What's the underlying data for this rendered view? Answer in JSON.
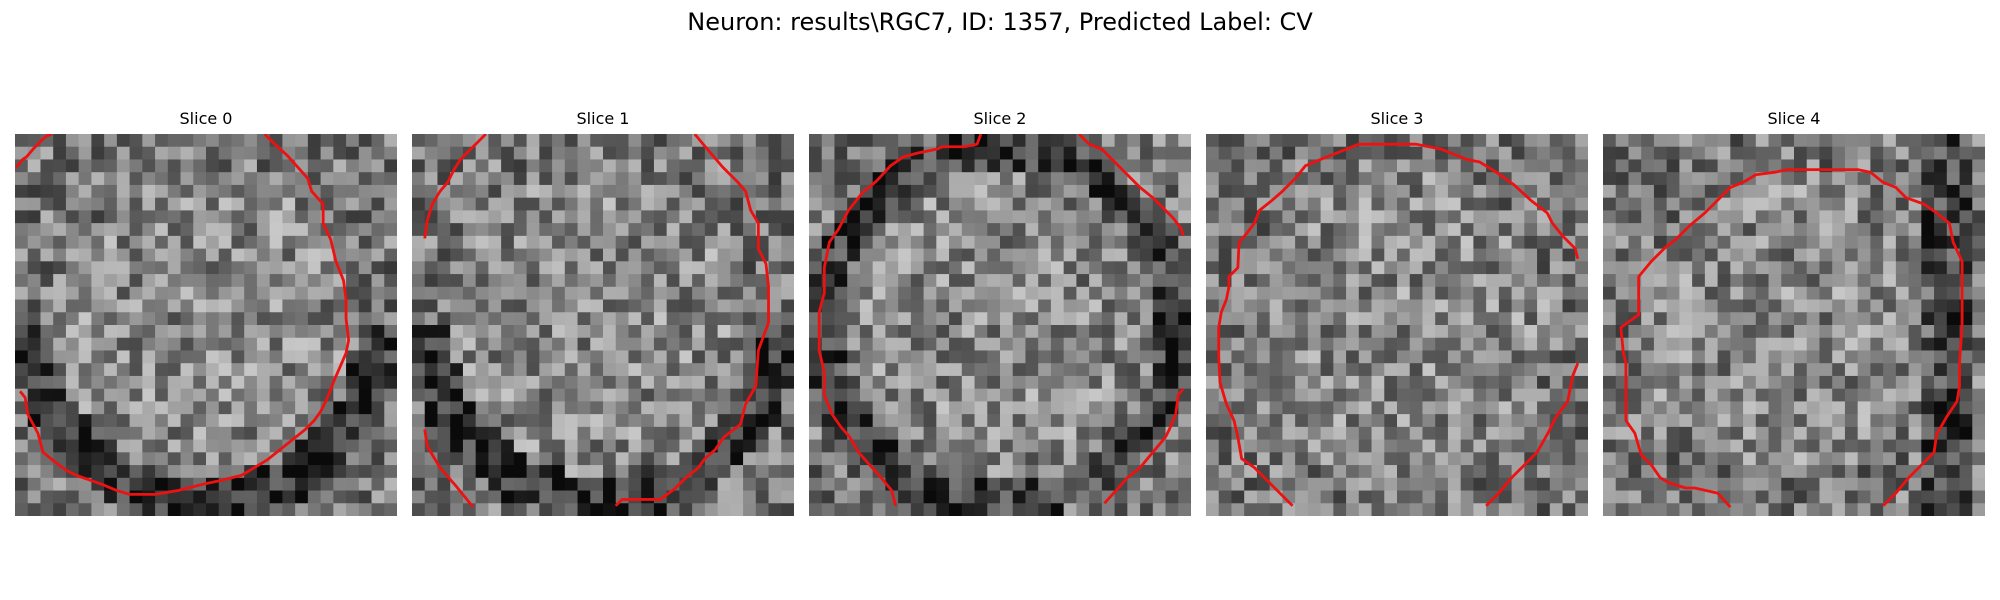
{
  "figure": {
    "title": "Neuron: results\\RGC7, ID: 1357, Predicted Label: CV",
    "contour_color": "#ee1111"
  },
  "panels": [
    {
      "title": "Slice 0",
      "seed": 11,
      "ring": "dark-lower",
      "contours": [
        [
          [
            0.5,
            26
          ],
          [
            3,
            24
          ],
          [
            6,
            20
          ],
          [
            9,
            18
          ],
          [
            15,
            11
          ],
          [
            19,
            7
          ],
          [
            24,
            2
          ],
          [
            29,
            0
          ]
        ],
        [
          [
            196,
            0
          ],
          [
            204,
            8
          ],
          [
            214,
            17
          ],
          [
            222,
            26
          ],
          [
            230,
            35
          ],
          [
            233,
            45
          ],
          [
            242,
            55
          ],
          [
            242,
            70
          ],
          [
            248,
            83
          ],
          [
            252,
            100
          ],
          [
            258,
            115
          ],
          [
            260,
            130
          ],
          [
            260,
            145
          ],
          [
            262,
            162
          ],
          [
            260,
            172
          ],
          [
            250,
            195
          ],
          [
            245,
            208
          ],
          [
            240,
            218
          ],
          [
            235,
            225
          ],
          [
            228,
            232
          ],
          [
            218,
            240
          ],
          [
            208,
            248
          ],
          [
            198,
            256
          ],
          [
            188,
            262
          ],
          [
            178,
            268
          ],
          [
            162,
            272
          ],
          [
            148,
            275
          ],
          [
            128,
            280
          ],
          [
            110,
            283
          ],
          [
            90,
            283
          ],
          [
            80,
            280
          ],
          [
            68,
            275
          ],
          [
            48,
            268
          ],
          [
            40,
            264
          ],
          [
            32,
            258
          ],
          [
            22,
            250
          ],
          [
            18,
            235
          ],
          [
            10,
            220
          ],
          [
            8,
            207
          ],
          [
            4,
            202
          ]
        ]
      ]
    },
    {
      "title": "Slice 1",
      "seed": 23,
      "ring": "dark-lower",
      "contours": [
        [
          [
            10,
            82
          ],
          [
            12,
            68
          ],
          [
            16,
            55
          ],
          [
            22,
            45
          ],
          [
            28,
            38
          ],
          [
            33,
            28
          ],
          [
            38,
            20
          ],
          [
            46,
            12
          ],
          [
            54,
            4
          ],
          [
            58,
            0
          ]
        ],
        [
          [
            222,
            0
          ],
          [
            232,
            12
          ],
          [
            244,
            26
          ],
          [
            256,
            38
          ],
          [
            262,
            45
          ],
          [
            266,
            60
          ],
          [
            272,
            70
          ],
          [
            272,
            90
          ],
          [
            278,
            102
          ],
          [
            280,
            120
          ],
          [
            280,
            148
          ],
          [
            272,
            170
          ],
          [
            270,
            198
          ],
          [
            262,
            212
          ],
          [
            258,
            228
          ],
          [
            245,
            238
          ],
          [
            238,
            248
          ],
          [
            230,
            255
          ],
          [
            225,
            262
          ],
          [
            215,
            270
          ],
          [
            207,
            278
          ],
          [
            195,
            287
          ],
          [
            165,
            287
          ],
          [
            160,
            292
          ]
        ],
        [
          [
            10,
            232
          ],
          [
            12,
            245
          ],
          [
            16,
            252
          ],
          [
            22,
            262
          ],
          [
            35,
            277
          ],
          [
            48,
            293
          ]
        ]
      ]
    },
    {
      "title": "Slice 2",
      "seed": 37,
      "ring": "dark-border",
      "contours": [
        [
          [
            135,
            0
          ],
          [
            132,
            8
          ],
          [
            122,
            10
          ],
          [
            105,
            10
          ],
          [
            100,
            12
          ],
          [
            85,
            15
          ],
          [
            74,
            18
          ],
          [
            64,
            25
          ],
          [
            53,
            37
          ],
          [
            42,
            46
          ],
          [
            31,
            60
          ],
          [
            23,
            75
          ],
          [
            16,
            85
          ],
          [
            12,
            105
          ],
          [
            12,
            125
          ],
          [
            8,
            140
          ],
          [
            8,
            170
          ],
          [
            12,
            187
          ],
          [
            12,
            205
          ],
          [
            18,
            220
          ],
          [
            25,
            230
          ],
          [
            32,
            238
          ],
          [
            39,
            250
          ],
          [
            46,
            258
          ],
          [
            55,
            268
          ],
          [
            65,
            280
          ],
          [
            68,
            292
          ]
        ],
        [
          [
            212,
            0
          ],
          [
            220,
            8
          ],
          [
            230,
            12
          ],
          [
            240,
            22
          ],
          [
            252,
            34
          ],
          [
            260,
            42
          ],
          [
            270,
            50
          ],
          [
            278,
            58
          ],
          [
            286,
            66
          ],
          [
            292,
            74
          ],
          [
            294,
            80
          ]
        ],
        [
          [
            294,
            200
          ],
          [
            290,
            205
          ],
          [
            288,
            220
          ],
          [
            283,
            232
          ],
          [
            280,
            238
          ],
          [
            270,
            250
          ],
          [
            260,
            262
          ],
          [
            250,
            270
          ],
          [
            243,
            278
          ],
          [
            232,
            290
          ]
        ]
      ]
    },
    {
      "title": "Slice 3",
      "seed": 53,
      "ring": "none",
      "contours": [
        [
          [
            68,
            292
          ],
          [
            58,
            282
          ],
          [
            48,
            272
          ],
          [
            38,
            262
          ],
          [
            28,
            255
          ],
          [
            25,
            238
          ],
          [
            22,
            225
          ],
          [
            16,
            212
          ],
          [
            11,
            195
          ],
          [
            10,
            175
          ],
          [
            10,
            152
          ],
          [
            12,
            140
          ],
          [
            16,
            130
          ],
          [
            18,
            120
          ],
          [
            18,
            112
          ],
          [
            25,
            105
          ],
          [
            26,
            85
          ],
          [
            32,
            78
          ],
          [
            38,
            70
          ],
          [
            42,
            60
          ],
          [
            52,
            52
          ],
          [
            60,
            45
          ],
          [
            70,
            35
          ],
          [
            78,
            25
          ],
          [
            90,
            20
          ],
          [
            100,
            16
          ],
          [
            110,
            12
          ],
          [
            120,
            8
          ],
          [
            140,
            8
          ],
          [
            165,
            8
          ],
          [
            185,
            12
          ],
          [
            195,
            16
          ],
          [
            205,
            20
          ],
          [
            215,
            22
          ],
          [
            228,
            30
          ],
          [
            242,
            40
          ],
          [
            255,
            52
          ],
          [
            268,
            62
          ],
          [
            272,
            70
          ],
          [
            280,
            80
          ],
          [
            290,
            90
          ],
          [
            292,
            98
          ]
        ],
        [
          [
            292,
            180
          ],
          [
            288,
            190
          ],
          [
            286,
            200
          ],
          [
            284,
            210
          ],
          [
            275,
            222
          ],
          [
            268,
            236
          ],
          [
            260,
            250
          ],
          [
            250,
            260
          ],
          [
            240,
            270
          ],
          [
            230,
            282
          ],
          [
            220,
            292
          ]
        ]
      ]
    },
    {
      "title": "Slice 4",
      "seed": 71,
      "ring": "right-dark",
      "contours": [
        [
          [
            100,
            293
          ],
          [
            90,
            282
          ],
          [
            72,
            278
          ],
          [
            65,
            278
          ],
          [
            52,
            274
          ],
          [
            45,
            270
          ],
          [
            38,
            260
          ],
          [
            30,
            252
          ],
          [
            25,
            235
          ],
          [
            18,
            225
          ],
          [
            18,
            180
          ],
          [
            16,
            172
          ],
          [
            14,
            152
          ],
          [
            28,
            142
          ],
          [
            28,
            120
          ],
          [
            28,
            112
          ],
          [
            38,
            100
          ],
          [
            48,
            90
          ],
          [
            58,
            82
          ],
          [
            68,
            72
          ],
          [
            80,
            62
          ],
          [
            90,
            52
          ],
          [
            100,
            42
          ],
          [
            110,
            38
          ],
          [
            120,
            32
          ],
          [
            135,
            30
          ],
          [
            145,
            28
          ],
          [
            200,
            28
          ],
          [
            210,
            30
          ],
          [
            220,
            38
          ],
          [
            230,
            42
          ],
          [
            238,
            50
          ],
          [
            252,
            55
          ],
          [
            262,
            62
          ],
          [
            272,
            70
          ],
          [
            275,
            85
          ],
          [
            282,
            100
          ],
          [
            282,
            150
          ],
          [
            280,
            180
          ],
          [
            280,
            198
          ],
          [
            278,
            210
          ],
          [
            270,
            222
          ],
          [
            262,
            236
          ],
          [
            260,
            250
          ],
          [
            250,
            260
          ],
          [
            240,
            270
          ],
          [
            230,
            282
          ],
          [
            220,
            292
          ]
        ]
      ]
    }
  ]
}
